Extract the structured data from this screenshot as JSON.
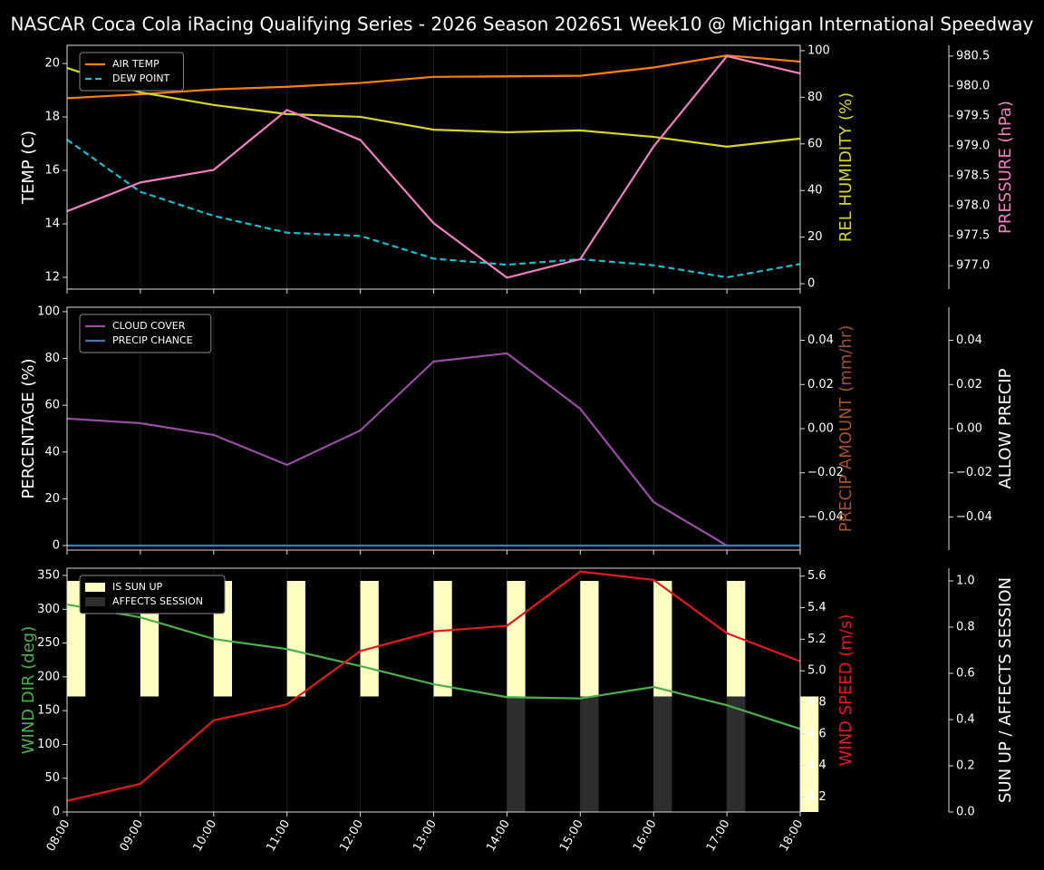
{
  "title": "NASCAR Coca Cola iRacing Qualifying Series - 2026 Season 2026S1 Week10 @ Michigan International Speedway",
  "chart_data": [
    {
      "type": "line",
      "legend": "upper left",
      "categories": [
        "08:00",
        "09:00",
        "10:00",
        "11:00",
        "12:00",
        "13:00",
        "14:00",
        "15:00",
        "16:00",
        "17:00",
        "18:00"
      ],
      "ylabel": "TEMP (C)",
      "ylabel_color": "#ffffff",
      "ylim": [
        11.56,
        20.68
      ],
      "yticks": [
        12,
        14,
        16,
        18,
        20
      ],
      "y2label": "REL HUMIDITY (%)",
      "y2label_color": "#d6d62a",
      "y2lim": [
        -2.3,
        102.3
      ],
      "y2ticks": [
        0,
        20,
        40,
        60,
        80,
        100
      ],
      "y3label": "PRESSURE (hPa)",
      "y3label_color": "#f080c0",
      "y3lim": [
        976.61,
        980.68
      ],
      "y3ticks": [
        {
          "value": 977.0,
          "label": "977.0"
        },
        {
          "value": 977.5,
          "label": "977.5"
        },
        {
          "value": 978.0,
          "label": "978.0"
        },
        {
          "value": 978.5,
          "label": "978.5"
        },
        {
          "value": 979.0,
          "label": "979.0"
        },
        {
          "value": 979.5,
          "label": "979.5"
        },
        {
          "value": 980.0,
          "label": "980.0"
        },
        {
          "value": 980.5,
          "label": "980.5"
        }
      ],
      "series": [
        {
          "name": "AIR TEMP",
          "color": "#ff7f0e",
          "axis": "y",
          "values": [
            18.7,
            18.85,
            19.03,
            19.13,
            19.27,
            19.5,
            19.52,
            19.54,
            19.85,
            20.3,
            20.07
          ]
        },
        {
          "name": "DEW POINT",
          "color": "#17becf",
          "axis": "y",
          "dash": true,
          "values": [
            17.15,
            15.2,
            14.3,
            13.67,
            13.55,
            12.7,
            12.47,
            12.68,
            12.45,
            12.0,
            12.5
          ]
        },
        {
          "color": "#d6d62a",
          "axis": "y2",
          "values": [
            92.6,
            82.1,
            76.7,
            72.8,
            71.6,
            66.1,
            65.0,
            65.8,
            63.0,
            58.8,
            62.3
          ]
        },
        {
          "color": "#f080c0",
          "axis": "y3",
          "values": [
            977.91,
            978.39,
            978.6,
            979.6,
            979.1,
            977.71,
            976.8,
            977.11,
            978.99,
            980.5,
            980.21
          ]
        }
      ]
    },
    {
      "type": "line",
      "legend": "upper left",
      "categories": [
        "08:00",
        "09:00",
        "10:00",
        "11:00",
        "12:00",
        "13:00",
        "14:00",
        "15:00",
        "16:00",
        "17:00",
        "18:00"
      ],
      "ylabel": "PERCENTAGE (%)",
      "ylabel_color": "#ffffff",
      "ylim": [
        -1.94,
        101.9
      ],
      "yticks": [
        0,
        20,
        40,
        60,
        80,
        100
      ],
      "y2label": "PRECIP AMOUNT (mm/hr)",
      "y2label_color": "#a0522d",
      "y2lim": [
        -0.055,
        0.055
      ],
      "y2ticks": [
        {
          "value": -0.04,
          "label": "−0.04"
        },
        {
          "value": -0.02,
          "label": "−0.02"
        },
        {
          "value": 0,
          "label": "0.00"
        },
        {
          "value": 0.02,
          "label": "0.02"
        },
        {
          "value": 0.04,
          "label": "0.04"
        }
      ],
      "y3label": "ALLOW PRECIP",
      "y3label_color": "#ffffff",
      "y3lim": [
        -0.055,
        0.055
      ],
      "y3ticks": [
        {
          "value": -0.04,
          "label": "−0.04"
        },
        {
          "value": -0.02,
          "label": "−0.02"
        },
        {
          "value": 0,
          "label": "0.00"
        },
        {
          "value": 0.02,
          "label": "0.02"
        },
        {
          "value": 0.04,
          "label": "0.04"
        }
      ],
      "series": [
        {
          "name": "CLOUD COVER",
          "color": "#984ea3",
          "axis": "y",
          "values": [
            54.3,
            52.3,
            47.3,
            34.5,
            49.2,
            78.7,
            82.2,
            58.5,
            18.6,
            0,
            0
          ]
        },
        {
          "name": "PRECIP CHANCE",
          "color": "#377eb8",
          "axis": "y",
          "values": [
            0,
            0,
            0,
            0,
            0,
            0,
            0,
            0,
            0,
            0,
            0
          ]
        }
      ]
    },
    {
      "type": "line",
      "legend": "upper left",
      "categories": [
        "08:00",
        "09:00",
        "10:00",
        "11:00",
        "12:00",
        "13:00",
        "14:00",
        "15:00",
        "16:00",
        "17:00",
        "18:00"
      ],
      "ylabel": "WIND DIR (deg)",
      "ylabel_color": "#4daf4a",
      "ylim": [
        0,
        360.7
      ],
      "yticks": [
        0,
        50,
        100,
        150,
        200,
        250,
        300,
        350
      ],
      "y2label": "WIND SPEED (m/s)",
      "y2label_color": "#e41a1c",
      "y2lim": [
        4.105,
        5.65
      ],
      "y2ticks": [
        4.2,
        4.4,
        4.6,
        4.8,
        {
          "value": 5.0,
          "label": "5.0"
        },
        5.2,
        5.4,
        5.6
      ],
      "y3label": "SUN UP / AFFECTS SESSION",
      "y3label_color": "#ffffff",
      "y3lim": [
        0,
        1.055
      ],
      "y3ticks": [
        {
          "value": 0,
          "label": "0.0"
        },
        {
          "value": 0.2,
          "label": "0.2"
        },
        {
          "value": 0.4,
          "label": "0.4"
        },
        {
          "value": 0.6,
          "label": "0.6"
        },
        {
          "value": 0.8,
          "label": "0.8"
        },
        {
          "value": 1,
          "label": "1.0"
        }
      ],
      "series": [
        {
          "name": "IS SUN UP",
          "color": "#ffffc4",
          "axis": "y3",
          "kind": "bar",
          "base": 0.5,
          "values": [
            1,
            1,
            1,
            1,
            1,
            1,
            1,
            1,
            1,
            1,
            0
          ]
        },
        {
          "name": "AFFECTS SESSION",
          "color": "#2e2e2e",
          "axis": "y3",
          "kind": "bar",
          "values": [
            0,
            0,
            0,
            0,
            0,
            0,
            0.5,
            0.5,
            0.5,
            0.5,
            0
          ]
        },
        {
          "color": "#4daf4a",
          "axis": "y",
          "values": [
            307,
            288,
            256,
            241,
            216,
            189,
            170,
            168,
            185,
            158,
            123
          ]
        },
        {
          "color": "#e41a1c",
          "axis": "y2",
          "values": [
            4.176,
            4.283,
            4.686,
            4.787,
            5.125,
            5.25,
            5.285,
            5.629,
            5.576,
            5.238,
            5.06
          ]
        }
      ]
    }
  ]
}
